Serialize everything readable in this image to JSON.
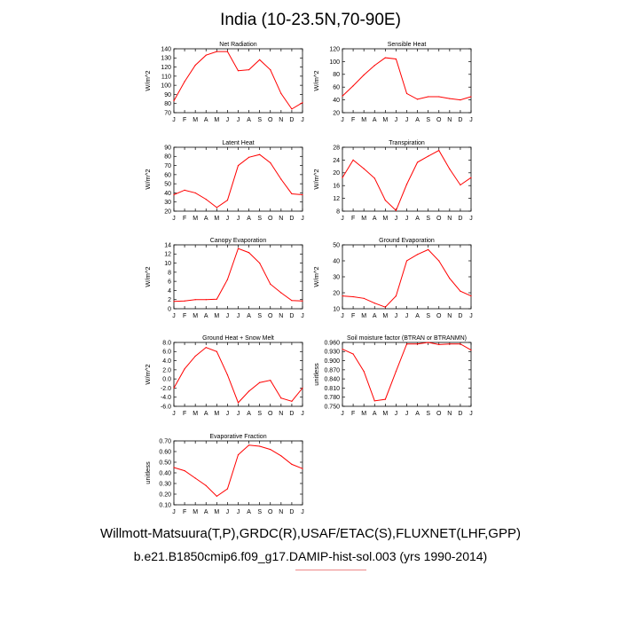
{
  "title": "India (10-23.5N,70-90E)",
  "footer_line1": "Willmott-Matsuura(T,P),GRDC(R),USAF/ETAC(S),FLUXNET(LHF,GPP)",
  "footer_line2": "b.e21.B1850cmip6.f09_g17.DAMIP-hist-sol.003 (yrs 1990-2014)",
  "colors": {
    "series": "#ff0000",
    "axis": "#000000"
  },
  "chart_data": [
    {
      "type": "line",
      "title": "Net Radiation",
      "ylabel": "W/m^2",
      "x": [
        "J",
        "F",
        "M",
        "A",
        "M",
        "J",
        "J",
        "A",
        "S",
        "O",
        "N",
        "D",
        "J"
      ],
      "ylim": [
        70,
        140
      ],
      "yticks": [
        "70",
        "80",
        "90",
        "100",
        "110",
        "120",
        "130",
        "140"
      ],
      "values": [
        83,
        104,
        122,
        133,
        137,
        137,
        116,
        117,
        128,
        117,
        91,
        74,
        81
      ]
    },
    {
      "type": "line",
      "title": "Sensible Heat",
      "ylabel": "W/m^2",
      "x": [
        "J",
        "F",
        "M",
        "A",
        "M",
        "J",
        "J",
        "A",
        "S",
        "O",
        "N",
        "D",
        "J"
      ],
      "ylim": [
        20,
        120
      ],
      "yticks": [
        "20",
        "40",
        "60",
        "80",
        "100",
        "120"
      ],
      "values": [
        46,
        62,
        79,
        94,
        106,
        104,
        50,
        41,
        45,
        45,
        42,
        40,
        45
      ]
    },
    {
      "type": "line",
      "title": "Latent Heat",
      "ylabel": "W/m^2",
      "x": [
        "J",
        "F",
        "M",
        "A",
        "M",
        "J",
        "J",
        "A",
        "S",
        "O",
        "N",
        "D",
        "J"
      ],
      "ylim": [
        20,
        90
      ],
      "yticks": [
        "20",
        "30",
        "40",
        "50",
        "60",
        "70",
        "80",
        "90"
      ],
      "values": [
        38,
        43,
        40,
        33,
        24,
        32,
        70,
        79,
        82,
        73,
        55,
        39,
        38
      ]
    },
    {
      "type": "line",
      "title": "Transpiration",
      "ylabel": "W/m^2",
      "x": [
        "J",
        "F",
        "M",
        "A",
        "M",
        "J",
        "J",
        "A",
        "S",
        "O",
        "N",
        "D",
        "J"
      ],
      "ylim": [
        8,
        28
      ],
      "yticks": [
        "8",
        "12",
        "16",
        "20",
        "24",
        "28"
      ],
      "values": [
        18.5,
        24.0,
        21.3,
        18.3,
        11.4,
        8.2,
        16.4,
        23.3,
        25.2,
        27.0,
        21.2,
        16.2,
        18.5
      ]
    },
    {
      "type": "line",
      "title": "Canopy Evaporation",
      "ylabel": "W/m^2",
      "x": [
        "J",
        "F",
        "M",
        "A",
        "M",
        "J",
        "J",
        "A",
        "S",
        "O",
        "N",
        "D",
        "J"
      ],
      "ylim": [
        0,
        14
      ],
      "yticks": [
        "0",
        "2",
        "4",
        "6",
        "8",
        "10",
        "12",
        "14"
      ],
      "values": [
        1.6,
        1.7,
        2.0,
        2.0,
        2.1,
        6.4,
        13.2,
        12.3,
        10.0,
        5.4,
        3.5,
        1.8,
        1.7
      ]
    },
    {
      "type": "line",
      "title": "Ground Evaporation",
      "ylabel": "W/m^2",
      "x": [
        "J",
        "F",
        "M",
        "A",
        "M",
        "J",
        "J",
        "A",
        "S",
        "O",
        "N",
        "D",
        "J"
      ],
      "ylim": [
        10,
        50
      ],
      "yticks": [
        "10",
        "20",
        "30",
        "40",
        "50"
      ],
      "values": [
        18,
        17.5,
        16.5,
        13.5,
        11,
        18,
        40,
        44,
        47,
        40,
        29,
        21,
        18
      ]
    },
    {
      "type": "line",
      "title": "Ground Heat + Snow Melt",
      "ylabel": "W/m^2",
      "x": [
        "J",
        "F",
        "M",
        "A",
        "M",
        "J",
        "J",
        "A",
        "S",
        "O",
        "N",
        "D",
        "J"
      ],
      "ylim": [
        -6,
        8
      ],
      "yticks": [
        "-6.0",
        "-4.0",
        "-2.0",
        "0.0",
        "2.0",
        "4.0",
        "6.0",
        "8.0"
      ],
      "values": [
        -2.0,
        2.2,
        5.0,
        6.9,
        6.0,
        0.9,
        -5.2,
        -2.7,
        -0.8,
        -0.3,
        -4.2,
        -4.9,
        -2.0
      ]
    },
    {
      "type": "line",
      "title": "Soil moisture factor (BTRAN or BTRANMN)",
      "ylabel": "unitless",
      "x": [
        "J",
        "F",
        "M",
        "A",
        "M",
        "J",
        "J",
        "A",
        "S",
        "O",
        "N",
        "D",
        "J"
      ],
      "ylim": [
        0.75,
        0.96
      ],
      "yticks": [
        "0.750",
        "0.780",
        "0.810",
        "0.840",
        "0.870",
        "0.900",
        "0.930",
        "0.960"
      ],
      "values": [
        0.938,
        0.922,
        0.865,
        0.768,
        0.773,
        0.865,
        0.955,
        0.955,
        0.96,
        0.953,
        0.955,
        0.955,
        0.935
      ]
    },
    {
      "type": "line",
      "title": "Evaporative Fraction",
      "ylabel": "unitless",
      "x": [
        "J",
        "F",
        "M",
        "A",
        "M",
        "J",
        "J",
        "A",
        "S",
        "O",
        "N",
        "D",
        "J"
      ],
      "ylim": [
        0.1,
        0.7
      ],
      "yticks": [
        "0.10",
        "0.20",
        "0.30",
        "0.40",
        "0.50",
        "0.60",
        "0.70"
      ],
      "values": [
        0.45,
        0.42,
        0.35,
        0.28,
        0.18,
        0.25,
        0.57,
        0.66,
        0.65,
        0.62,
        0.56,
        0.48,
        0.44
      ]
    }
  ]
}
